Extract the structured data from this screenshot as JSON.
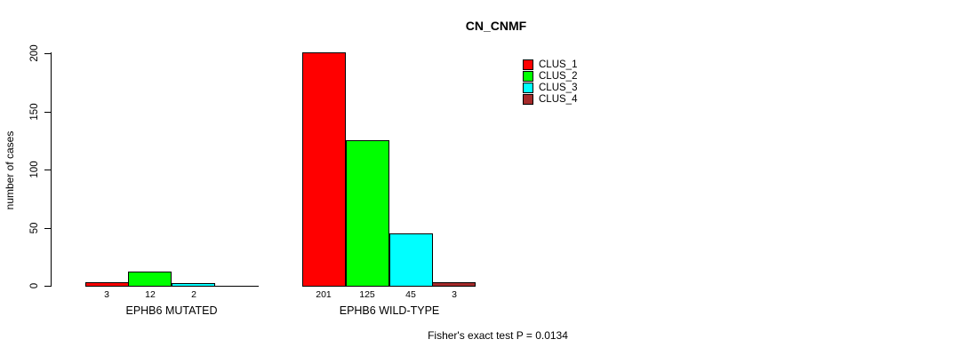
{
  "chart_data": {
    "type": "bar",
    "title": "CN_CNMF",
    "xlabel": "",
    "ylabel": "number of cases",
    "categories": [
      "EPHB6 MUTATED",
      "EPHB6 WILD-TYPE"
    ],
    "series": [
      {
        "name": "CLUS_1",
        "color": "#FF0000",
        "values": [
          3,
          201
        ]
      },
      {
        "name": "CLUS_2",
        "color": "#00FF00",
        "values": [
          12,
          125
        ]
      },
      {
        "name": "CLUS_3",
        "color": "#00FFFF",
        "values": [
          2,
          45
        ]
      },
      {
        "name": "CLUS_4",
        "color": "#A52A2A",
        "values": [
          0,
          3
        ]
      }
    ],
    "bar_value_labels": [
      [
        "3",
        "12",
        "2",
        ""
      ],
      [
        "201",
        "125",
        "45",
        "3"
      ]
    ],
    "yticks": [
      "0",
      "50",
      "100",
      "150",
      "200"
    ],
    "ylim": [
      0,
      200
    ],
    "grid": false,
    "legend_position": "top-right",
    "annotation": "Fisher's exact test P = 0.0134"
  },
  "colors": {
    "axis": "#000000",
    "text": "#000000",
    "background": "#FFFFFF"
  }
}
